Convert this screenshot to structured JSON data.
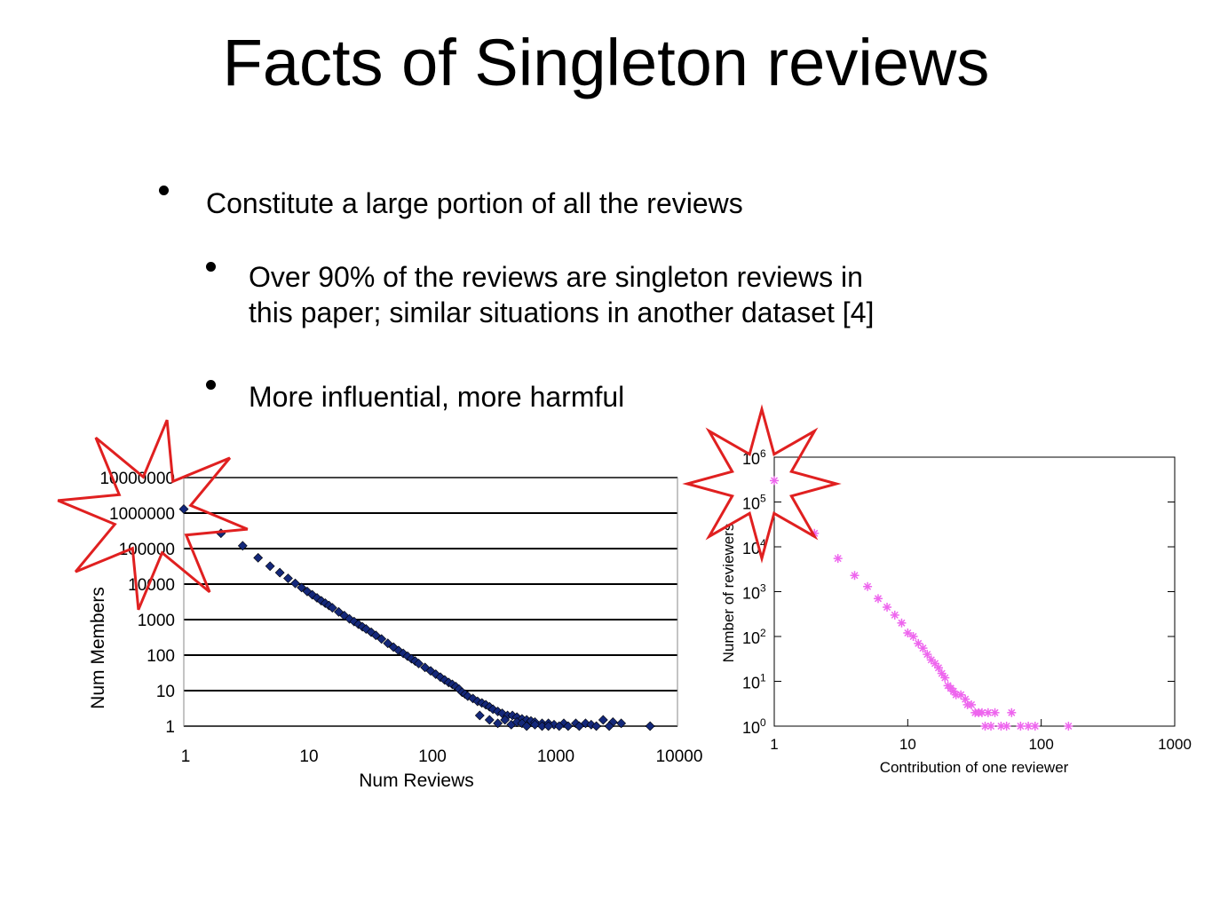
{
  "slide": {
    "title": "Facts of Singleton reviews",
    "bullets": [
      {
        "level": 1,
        "text": "Constitute a large portion of all the reviews"
      },
      {
        "level": 2,
        "lines": [
          "Over 90% of the reviews are singleton reviews in",
          "this paper; similar situations in another dataset [4]"
        ]
      },
      {
        "level": 2,
        "text": "More influential, more harmful"
      }
    ]
  },
  "colors": {
    "left_markers": "#14287a",
    "right_markers": "#ee66ee",
    "starburst": "#e02020",
    "gridline": "#000000"
  },
  "chart_data": [
    {
      "type": "scatter",
      "title": "",
      "xlabel": "Num Reviews",
      "ylabel": "Num Members",
      "x_scale": "log",
      "y_scale": "log",
      "xlim": [
        1,
        10000
      ],
      "ylim": [
        1,
        10000000
      ],
      "grid": "horizontal",
      "marker": "diamond",
      "x_tick_labels": [
        "1",
        "10",
        "100",
        "1000",
        "10000"
      ],
      "y_tick_labels": [
        "1",
        "10",
        "100",
        "1000",
        "10000",
        "100000",
        "1000000",
        "10000000"
      ],
      "points": [
        [
          1,
          1300000
        ],
        [
          2,
          270000
        ],
        [
          3,
          120000
        ],
        [
          4,
          55000
        ],
        [
          5,
          32000
        ],
        [
          6,
          21000
        ],
        [
          7,
          14500
        ],
        [
          8,
          10500
        ],
        [
          9,
          8000
        ],
        [
          10,
          6200
        ],
        [
          11,
          5000
        ],
        [
          12,
          4100
        ],
        [
          13,
          3400
        ],
        [
          14,
          2900
        ],
        [
          15,
          2500
        ],
        [
          16,
          2150
        ],
        [
          18,
          1650
        ],
        [
          20,
          1300
        ],
        [
          22,
          1050
        ],
        [
          24,
          880
        ],
        [
          26,
          740
        ],
        [
          28,
          630
        ],
        [
          30,
          545
        ],
        [
          33,
          440
        ],
        [
          36,
          360
        ],
        [
          40,
          285
        ],
        [
          45,
          215
        ],
        [
          50,
          168
        ],
        [
          55,
          135
        ],
        [
          60,
          112
        ],
        [
          65,
          93
        ],
        [
          70,
          79
        ],
        [
          75,
          68
        ],
        [
          80,
          58
        ],
        [
          90,
          45
        ],
        [
          100,
          36
        ],
        [
          110,
          29
        ],
        [
          120,
          24
        ],
        [
          130,
          20
        ],
        [
          140,
          17
        ],
        [
          150,
          15
        ],
        [
          160,
          13
        ],
        [
          170,
          11
        ],
        [
          180,
          9
        ],
        [
          190,
          8
        ],
        [
          200,
          7
        ],
        [
          220,
          6
        ],
        [
          240,
          5
        ],
        [
          260,
          4.5
        ],
        [
          280,
          4
        ],
        [
          300,
          3.5
        ],
        [
          320,
          3
        ],
        [
          350,
          2.6
        ],
        [
          380,
          2.3
        ],
        [
          420,
          2
        ],
        [
          460,
          2
        ],
        [
          500,
          1.8
        ],
        [
          550,
          1.6
        ],
        [
          600,
          1.5
        ],
        [
          650,
          1.4
        ],
        [
          700,
          1.3
        ],
        [
          800,
          1.2
        ],
        [
          900,
          1.2
        ],
        [
          1000,
          1.1
        ],
        [
          1200,
          1.2
        ],
        [
          1500,
          1.2
        ],
        [
          1800,
          1.2
        ],
        [
          2000,
          1.1
        ],
        [
          2500,
          1.5
        ],
        [
          3000,
          1.3
        ],
        [
          3500,
          1.2
        ],
        [
          6000,
          1
        ],
        [
          250,
          2
        ],
        [
          300,
          1.5
        ],
        [
          350,
          1.2
        ],
        [
          400,
          1.5
        ],
        [
          450,
          1.1
        ],
        [
          500,
          1.3
        ],
        [
          550,
          1.2
        ],
        [
          600,
          1
        ],
        [
          700,
          1.1
        ],
        [
          800,
          1
        ],
        [
          900,
          1
        ],
        [
          1100,
          1
        ],
        [
          1300,
          1
        ],
        [
          1600,
          1
        ],
        [
          2200,
          1
        ],
        [
          2800,
          1
        ]
      ]
    },
    {
      "type": "scatter",
      "title": "",
      "xlabel": "Contribution of one reviewer",
      "ylabel": "Number of reviewers",
      "x_scale": "log",
      "y_scale": "log",
      "xlim": [
        1,
        1000
      ],
      "ylim": [
        1,
        1000000
      ],
      "grid": "off",
      "marker": "asterisk",
      "x_tick_labels": [
        "1",
        "10",
        "100",
        "1000"
      ],
      "y_tick_exponents": [
        "0",
        "1",
        "2",
        "3",
        "4",
        "5",
        "6"
      ],
      "y_tick_base": "10",
      "points": [
        [
          1,
          300000
        ],
        [
          2,
          20000
        ],
        [
          3,
          5500
        ],
        [
          4,
          2300
        ],
        [
          5,
          1300
        ],
        [
          6,
          700
        ],
        [
          7,
          450
        ],
        [
          8,
          300
        ],
        [
          9,
          200
        ],
        [
          10,
          120
        ],
        [
          11,
          100
        ],
        [
          12,
          70
        ],
        [
          13,
          55
        ],
        [
          14,
          40
        ],
        [
          15,
          30
        ],
        [
          16,
          25
        ],
        [
          17,
          20
        ],
        [
          18,
          15
        ],
        [
          19,
          12
        ],
        [
          20,
          8
        ],
        [
          21,
          7
        ],
        [
          22,
          6
        ],
        [
          23,
          5
        ],
        [
          25,
          5
        ],
        [
          27,
          4
        ],
        [
          28,
          3
        ],
        [
          30,
          3
        ],
        [
          32,
          2
        ],
        [
          34,
          2
        ],
        [
          36,
          2
        ],
        [
          38,
          1
        ],
        [
          40,
          2
        ],
        [
          42,
          1
        ],
        [
          45,
          2
        ],
        [
          50,
          1
        ],
        [
          55,
          1
        ],
        [
          60,
          2
        ],
        [
          70,
          1
        ],
        [
          80,
          1
        ],
        [
          90,
          1
        ],
        [
          160,
          1
        ]
      ]
    }
  ]
}
